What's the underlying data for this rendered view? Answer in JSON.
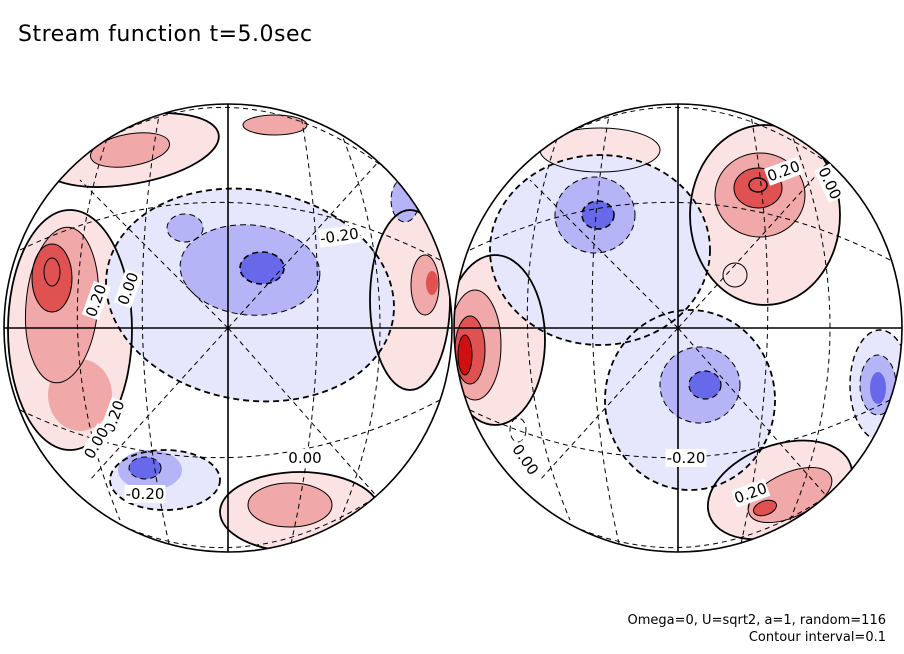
{
  "chart_data": {
    "type": "heatmap",
    "title": "Stream function t=5.0sec",
    "projection": "orthographic hemispheres",
    "colors": {
      "positive_light": "#fbe3e3",
      "positive_mid": "#f0a8a8",
      "positive_strong": "#e05252",
      "positive_peak": "#d01010",
      "negative_light": "#e6e6fc",
      "negative_mid": "#b4b4f6",
      "negative_strong": "#6868ea",
      "negative_peak": "#3b3be0"
    },
    "hemispheres": [
      {
        "name": "left",
        "contour_labels": [
          "0.20",
          "0.00",
          "-0.20",
          "0.20",
          "0.00",
          "0.00",
          "-0.20"
        ]
      },
      {
        "name": "right",
        "contour_labels": [
          "0.20",
          "0.00",
          "-0.20",
          "0.00",
          "0.20"
        ]
      }
    ],
    "contour_interval": 0.1
  },
  "footer": {
    "line1": "Omega=0, U=sqrt2, a=1, random=116",
    "line2": "Contour interval=0.1"
  }
}
